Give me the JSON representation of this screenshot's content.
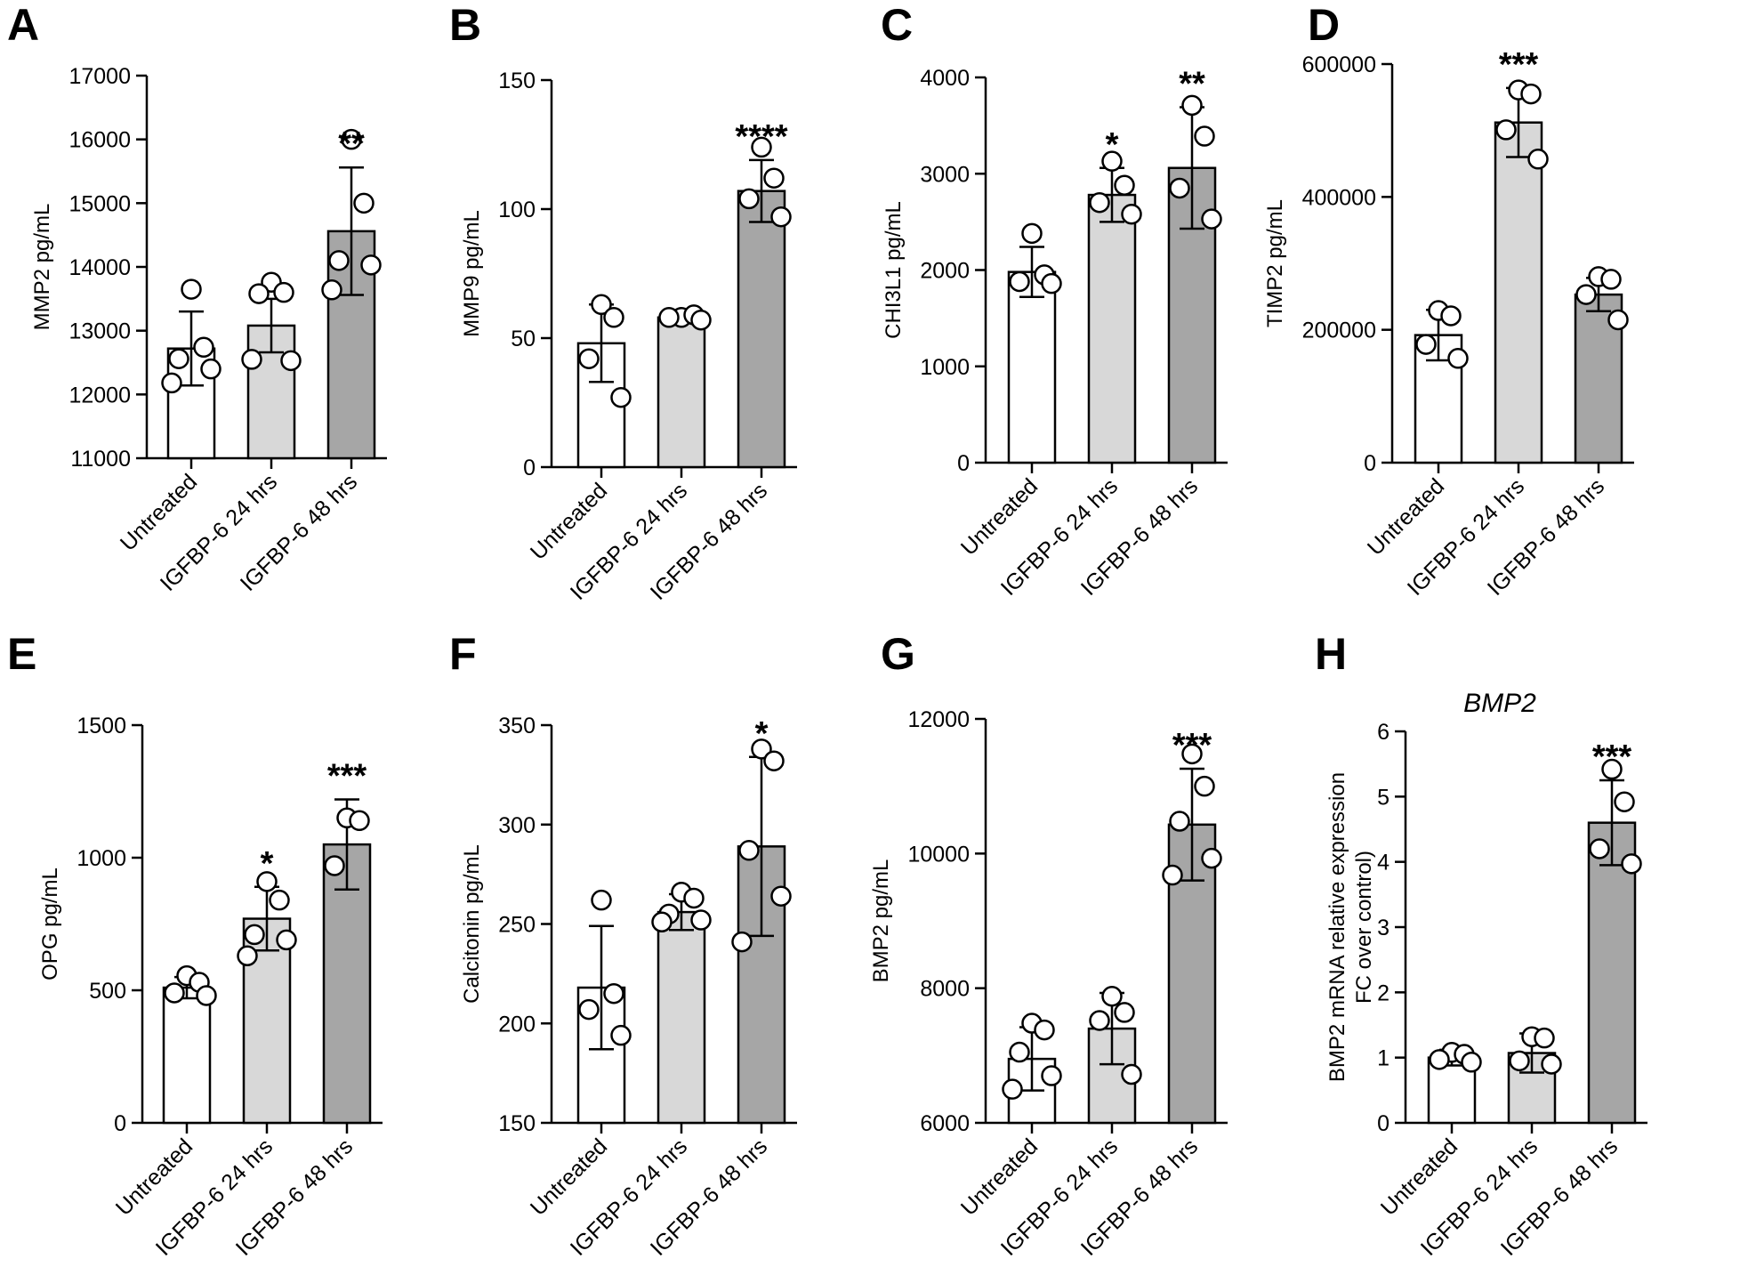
{
  "chart_data": [
    {
      "panel": "A",
      "type": "bar",
      "title": "",
      "categories": [
        "Untreated",
        "IGFBP-6 24 hrs",
        "IGFBP-6 48 hrs"
      ],
      "ylabel": "MMP2 pg/mL",
      "xlabel": "",
      "ylim": [
        11000,
        17000
      ],
      "yticks": [
        11000,
        12000,
        13000,
        14000,
        15000,
        16000,
        17000
      ],
      "ytick_labels": [
        "11000",
        "12000",
        "13000",
        "14000",
        "15000",
        "16000",
        "17000"
      ],
      "values": [
        12720,
        13080,
        14560
      ],
      "errors": [
        580,
        420,
        1000
      ],
      "points": [
        [
          13650,
          12740,
          12560,
          12400,
          12180
        ],
        [
          13760,
          13600,
          13580,
          12530,
          12550
        ],
        [
          16000,
          15000,
          14100,
          14030,
          13640
        ]
      ],
      "significance": [
        "",
        "",
        "**"
      ],
      "fills": [
        "#ffffff",
        "#d8d8d8",
        "#a6a6a6"
      ],
      "grid": false
    },
    {
      "panel": "B",
      "type": "bar",
      "title": "",
      "categories": [
        "Untreated",
        "IGFBP-6 24 hrs",
        "IGFBP-6 48 hrs"
      ],
      "ylabel": "MMP9 pg/mL",
      "xlabel": "",
      "ylim": [
        0,
        150
      ],
      "yticks": [
        0,
        50,
        100,
        150
      ],
      "ytick_labels": [
        "0",
        "50",
        "100",
        "150"
      ],
      "values": [
        48,
        58,
        107
      ],
      "errors": [
        15,
        2,
        12
      ],
      "points": [
        [
          63,
          58,
          42,
          27
        ],
        [
          58,
          59,
          58,
          57
        ],
        [
          124,
          112,
          104,
          97
        ]
      ],
      "significance": [
        "",
        "",
        "****"
      ],
      "fills": [
        "#ffffff",
        "#d8d8d8",
        "#a6a6a6"
      ],
      "grid": false
    },
    {
      "panel": "C",
      "type": "bar",
      "title": "",
      "categories": [
        "Untreated",
        "IGFBP-6 24 hrs",
        "IGFBP-6 48 hrs"
      ],
      "ylabel": "CHI3L1 pg/mL",
      "xlabel": "",
      "ylim": [
        0,
        4000
      ],
      "yticks": [
        0,
        1000,
        2000,
        3000,
        4000
      ],
      "ytick_labels": [
        "0",
        "1000",
        "2000",
        "3000",
        "4000"
      ],
      "values": [
        1980,
        2780,
        3060
      ],
      "errors": [
        260,
        280,
        630
      ],
      "points": [
        [
          2380,
          1950,
          1880,
          1860
        ],
        [
          3130,
          2880,
          2700,
          2580
        ],
        [
          3710,
          3390,
          2850,
          2530
        ]
      ],
      "significance": [
        "",
        "*",
        "**"
      ],
      "fills": [
        "#ffffff",
        "#d8d8d8",
        "#a6a6a6"
      ],
      "grid": false
    },
    {
      "panel": "D",
      "type": "bar",
      "title": "",
      "categories": [
        "Untreated",
        "IGFBP-6 24 hrs",
        "IGFBP-6 48 hrs"
      ],
      "ylabel": "TIMP2 pg/mL",
      "xlabel": "",
      "ylim": [
        0,
        600000
      ],
      "yticks": [
        0,
        200000,
        400000,
        600000
      ],
      "ytick_labels": [
        "0",
        "200000",
        "400000",
        "600000"
      ],
      "values": [
        192000,
        512000,
        253000
      ],
      "errors": [
        38000,
        52000,
        25000
      ],
      "points": [
        [
          229000,
          221000,
          178000,
          157000
        ],
        [
          561000,
          555000,
          501000,
          457000
        ],
        [
          280000,
          276000,
          253000,
          215000
        ]
      ],
      "significance": [
        "",
        "***",
        ""
      ],
      "fills": [
        "#ffffff",
        "#d8d8d8",
        "#a6a6a6"
      ],
      "grid": false
    },
    {
      "panel": "E",
      "type": "bar",
      "title": "",
      "categories": [
        "Untreated",
        "IGFBP-6 24 hrs",
        "IGFBP-6 48 hrs"
      ],
      "ylabel": "OPG pg/mL",
      "xlabel": "",
      "ylim": [
        0,
        1500
      ],
      "yticks": [
        0,
        500,
        1000,
        1500
      ],
      "ytick_labels": [
        "0",
        "500",
        "1000",
        "1500"
      ],
      "values": [
        510,
        770,
        1050
      ],
      "errors": [
        40,
        120,
        170
      ],
      "points": [
        [
          555,
          530,
          490,
          480
        ],
        [
          910,
          840,
          710,
          690,
          630
        ],
        [
          1150,
          1140,
          970
        ]
      ],
      "significance": [
        "",
        "*",
        "***"
      ],
      "fills": [
        "#ffffff",
        "#d8d8d8",
        "#a6a6a6"
      ],
      "grid": false
    },
    {
      "panel": "F",
      "type": "bar",
      "title": "",
      "categories": [
        "Untreated",
        "IGFBP-6 24 hrs",
        "IGFBP-6 48 hrs"
      ],
      "ylabel": "Calcitonin pg/mL",
      "xlabel": "",
      "ylim": [
        150,
        350
      ],
      "yticks": [
        150,
        200,
        250,
        300,
        350
      ],
      "ytick_labels": [
        "150",
        "200",
        "250",
        "300",
        "350"
      ],
      "values": [
        218,
        256,
        289
      ],
      "errors": [
        31,
        9,
        45
      ],
      "points": [
        [
          262,
          215,
          207,
          194
        ],
        [
          266,
          263,
          255,
          252,
          251
        ],
        [
          338,
          332,
          287,
          264,
          241
        ]
      ],
      "significance": [
        "",
        "",
        "*"
      ],
      "fills": [
        "#ffffff",
        "#d8d8d8",
        "#a6a6a6"
      ],
      "grid": false
    },
    {
      "panel": "G",
      "type": "bar",
      "title": "",
      "categories": [
        "Untreated",
        "IGFBP-6 24 hrs",
        "IGFBP-6 48 hrs"
      ],
      "ylabel": "BMP2 pg/mL",
      "xlabel": "",
      "ylim": [
        6000,
        12000
      ],
      "yticks": [
        6000,
        8000,
        10000,
        12000
      ],
      "ytick_labels": [
        "6000",
        "8000",
        "10000",
        "12000"
      ],
      "values": [
        6950,
        7400,
        10430
      ],
      "errors": [
        470,
        530,
        830
      ],
      "points": [
        [
          7480,
          7380,
          7050,
          6700,
          6500
        ],
        [
          7880,
          7640,
          7520,
          6720
        ],
        [
          11480,
          11000,
          10480,
          9930,
          9680
        ]
      ],
      "significance": [
        "",
        "",
        "***"
      ],
      "fills": [
        "#ffffff",
        "#d8d8d8",
        "#a6a6a6"
      ],
      "grid": false
    },
    {
      "panel": "H",
      "type": "bar",
      "title": "BMP2",
      "categories": [
        "Untreated",
        "IGFBP-6 24 hrs",
        "IGFBP-6 48 hrs"
      ],
      "ylabel": "BMP2 mRNA relative expression\nFC over control)",
      "xlabel": "",
      "ylim": [
        0,
        6
      ],
      "yticks": [
        0,
        1,
        2,
        3,
        4,
        5,
        6
      ],
      "ytick_labels": [
        "0",
        "1",
        "2",
        "3",
        "4",
        "5",
        "6"
      ],
      "values": [
        1.0,
        1.07,
        4.6
      ],
      "errors": [
        0.12,
        0.3,
        0.65
      ],
      "points": [
        [
          1.08,
          1.05,
          0.97,
          0.93
        ],
        [
          1.32,
          1.3,
          0.95,
          0.9
        ],
        [
          5.42,
          4.92,
          4.2,
          3.97
        ]
      ],
      "significance": [
        "",
        "",
        "***"
      ],
      "fills": [
        "#ffffff",
        "#d8d8d8",
        "#a6a6a6"
      ],
      "grid": false
    }
  ]
}
